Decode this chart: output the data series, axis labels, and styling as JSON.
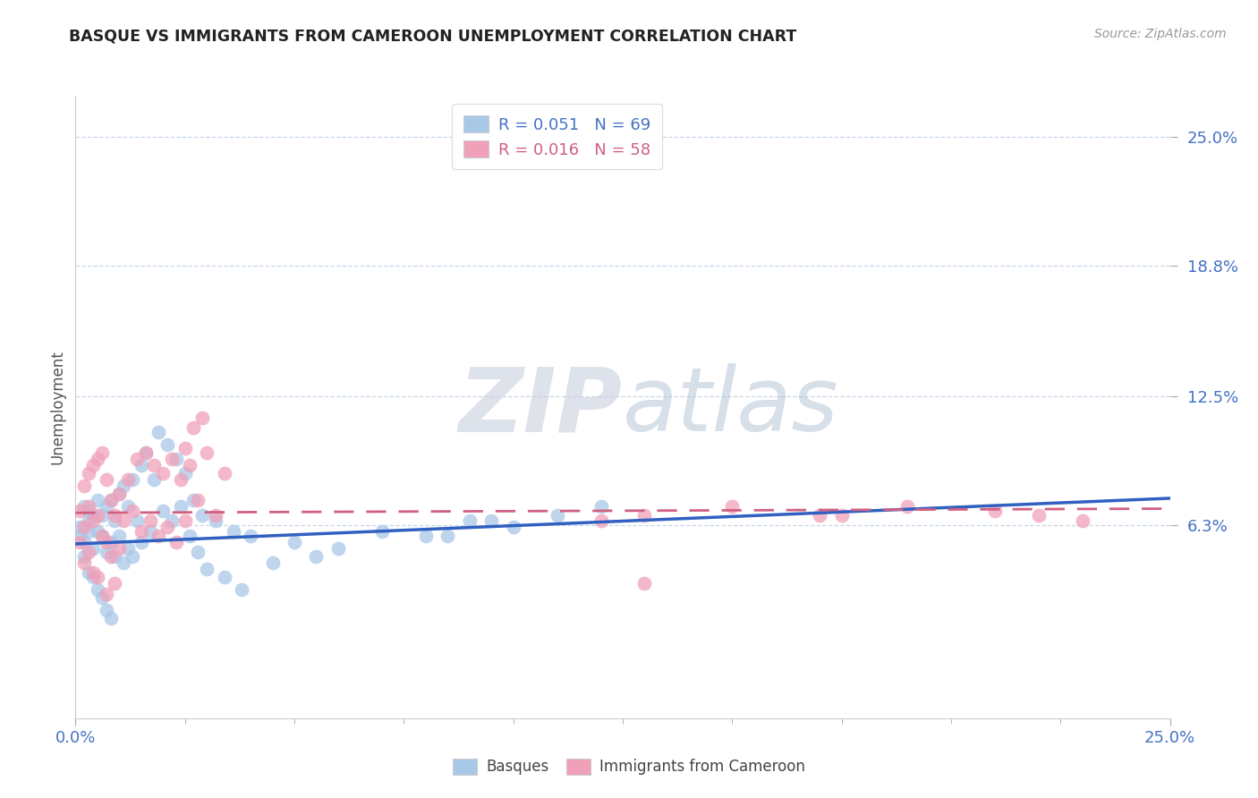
{
  "title": "BASQUE VS IMMIGRANTS FROM CAMEROON UNEMPLOYMENT CORRELATION CHART",
  "source": "Source: ZipAtlas.com",
  "ylabel": "Unemployment",
  "ytick_values": [
    0.063,
    0.125,
    0.188,
    0.25
  ],
  "ytick_labels": [
    "6.3%",
    "12.5%",
    "18.8%",
    "25.0%"
  ],
  "xlim": [
    0.0,
    0.25
  ],
  "ylim": [
    -0.03,
    0.27
  ],
  "legend_r1": "R = 0.051",
  "legend_n1": "N = 69",
  "legend_r2": "R = 0.016",
  "legend_n2": "N = 58",
  "basque_color": "#a8c8e8",
  "cameroon_color": "#f0a0b8",
  "basque_line_color": "#3060c0",
  "cameroon_line_color": "#d06080",
  "axis_label_color": "#4472c4",
  "grid_color": "#c8d8e8",
  "basque_line_y0": 0.054,
  "basque_line_y1": 0.076,
  "cameroon_line_y0": 0.069,
  "cameroon_line_y1": 0.071,
  "watermark_zip": "ZIP",
  "watermark_atlas": "atlas",
  "basque_x": [
    0.001,
    0.001,
    0.002,
    0.002,
    0.002,
    0.003,
    0.003,
    0.003,
    0.003,
    0.004,
    0.004,
    0.004,
    0.005,
    0.005,
    0.005,
    0.006,
    0.006,
    0.006,
    0.007,
    0.007,
    0.007,
    0.008,
    0.008,
    0.008,
    0.009,
    0.009,
    0.01,
    0.01,
    0.011,
    0.011,
    0.012,
    0.012,
    0.013,
    0.013,
    0.014,
    0.015,
    0.015,
    0.016,
    0.017,
    0.018,
    0.019,
    0.02,
    0.021,
    0.022,
    0.023,
    0.024,
    0.025,
    0.026,
    0.027,
    0.028,
    0.029,
    0.03,
    0.032,
    0.034,
    0.036,
    0.038,
    0.04,
    0.045,
    0.05,
    0.055,
    0.06,
    0.07,
    0.08,
    0.09,
    0.1,
    0.11,
    0.12,
    0.085,
    0.095
  ],
  "basque_y": [
    0.062,
    0.058,
    0.072,
    0.055,
    0.048,
    0.065,
    0.07,
    0.06,
    0.04,
    0.068,
    0.052,
    0.038,
    0.075,
    0.06,
    0.032,
    0.068,
    0.058,
    0.028,
    0.072,
    0.05,
    0.022,
    0.075,
    0.055,
    0.018,
    0.065,
    0.048,
    0.078,
    0.058,
    0.082,
    0.045,
    0.072,
    0.052,
    0.085,
    0.048,
    0.065,
    0.092,
    0.055,
    0.098,
    0.06,
    0.085,
    0.108,
    0.07,
    0.102,
    0.065,
    0.095,
    0.072,
    0.088,
    0.058,
    0.075,
    0.05,
    0.068,
    0.042,
    0.065,
    0.038,
    0.06,
    0.032,
    0.058,
    0.045,
    0.055,
    0.048,
    0.052,
    0.06,
    0.058,
    0.065,
    0.062,
    0.068,
    0.072,
    0.058,
    0.065
  ],
  "cameroon_x": [
    0.001,
    0.001,
    0.002,
    0.002,
    0.002,
    0.003,
    0.003,
    0.003,
    0.004,
    0.004,
    0.004,
    0.005,
    0.005,
    0.005,
    0.006,
    0.006,
    0.007,
    0.007,
    0.007,
    0.008,
    0.008,
    0.009,
    0.009,
    0.01,
    0.01,
    0.011,
    0.012,
    0.013,
    0.014,
    0.015,
    0.016,
    0.017,
    0.018,
    0.019,
    0.02,
    0.021,
    0.022,
    0.023,
    0.024,
    0.025,
    0.026,
    0.028,
    0.03,
    0.032,
    0.034,
    0.025,
    0.027,
    0.029,
    0.12,
    0.13,
    0.15,
    0.17,
    0.19,
    0.21,
    0.22,
    0.23,
    0.13,
    0.175
  ],
  "cameroon_y": [
    0.07,
    0.055,
    0.082,
    0.062,
    0.045,
    0.088,
    0.072,
    0.05,
    0.092,
    0.065,
    0.04,
    0.095,
    0.068,
    0.038,
    0.098,
    0.058,
    0.085,
    0.055,
    0.03,
    0.075,
    0.048,
    0.068,
    0.035,
    0.078,
    0.052,
    0.065,
    0.085,
    0.07,
    0.095,
    0.06,
    0.098,
    0.065,
    0.092,
    0.058,
    0.088,
    0.062,
    0.095,
    0.055,
    0.085,
    0.065,
    0.092,
    0.075,
    0.098,
    0.068,
    0.088,
    0.1,
    0.11,
    0.115,
    0.065,
    0.068,
    0.072,
    0.068,
    0.072,
    0.07,
    0.068,
    0.065,
    0.035,
    0.068
  ]
}
